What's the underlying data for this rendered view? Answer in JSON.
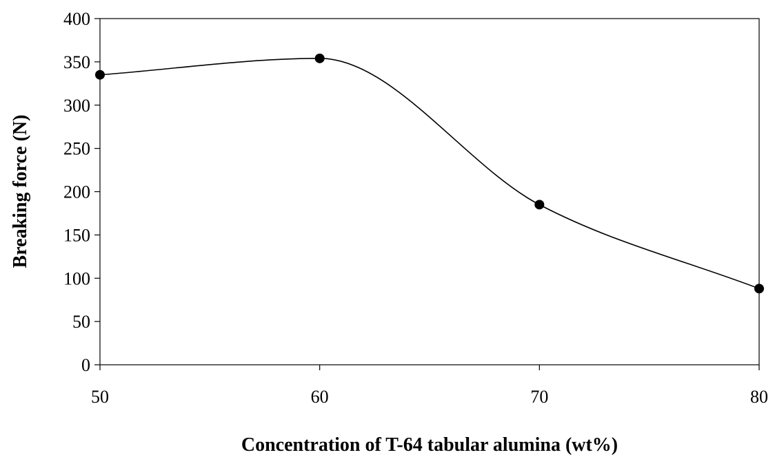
{
  "chart_data": {
    "type": "line",
    "title": "",
    "xlabel": "Concentration of T-64 tabular alumina (wt%)",
    "ylabel": "Breaking force (N)",
    "xlim": [
      50,
      80
    ],
    "ylim": [
      0,
      400
    ],
    "xticks": [
      50,
      60,
      70,
      80
    ],
    "yticks": [
      0,
      50,
      100,
      150,
      200,
      250,
      300,
      350,
      400
    ],
    "grid": false,
    "legend": "none",
    "smooth": true,
    "series": [
      {
        "x": [
          50,
          60,
          70,
          80
        ],
        "y": [
          335,
          354,
          185,
          88
        ],
        "color": "#000000",
        "marker": "circle"
      }
    ]
  }
}
